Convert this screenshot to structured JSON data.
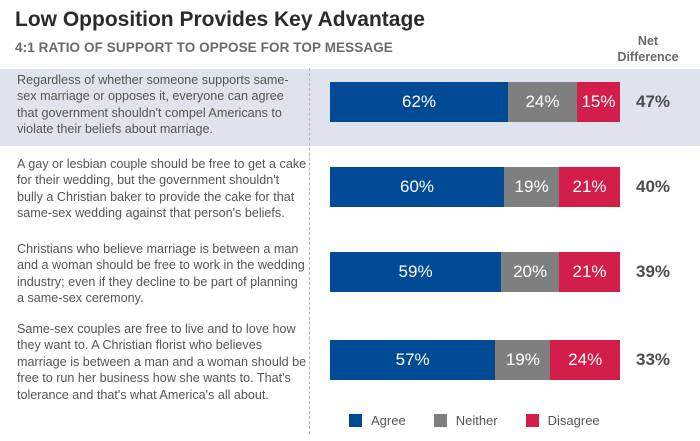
{
  "title": "Low Opposition Provides Key Advantage",
  "subtitle": "4:1 RATIO OF SUPPORT TO OPPOSE FOR TOP MESSAGE",
  "net_header": "Net Difference",
  "legend": {
    "agree": "Agree",
    "neither": "Neither",
    "disagree": "Disagree"
  },
  "colors": {
    "agree": "#004a96",
    "neither": "#7f7f7f",
    "disagree": "#d31d4b",
    "highlight": "#dee3ee"
  },
  "chart_data": {
    "type": "bar",
    "orientation": "horizontal",
    "stacked": true,
    "highlighted_row": 0,
    "categories": [
      "Regardless of whether someone supports same-sex marriage or opposes it, everyone can agree that government shouldn't compel Americans to violate their beliefs about marriage.",
      "A gay or lesbian couple should be free to get a cake for their wedding, but the government shouldn't bully a Christian baker to provide the cake for that same-sex wedding against that person's beliefs.",
      "Christians who believe marriage is between a man and a woman should be free to work in the wedding industry; even if they decline to be part of planning a same-sex ceremony.",
      "Same-sex couples are free to live and to love how they want to. A Christian florist who believes marriage is between a man and a woman should be free to run her business how she wants to. That's tolerance and that's what America's all about."
    ],
    "series": [
      {
        "name": "Agree",
        "values": [
          62,
          60,
          59,
          57
        ]
      },
      {
        "name": "Neither",
        "values": [
          24,
          19,
          20,
          19
        ]
      },
      {
        "name": "Disagree",
        "values": [
          15,
          21,
          21,
          24
        ]
      }
    ],
    "net_difference": [
      "47%",
      "40%",
      "39%",
      "33%"
    ],
    "value_labels": [
      [
        "62%",
        "24%",
        "15%"
      ],
      [
        "60%",
        "19%",
        "21%"
      ],
      [
        "59%",
        "20%",
        "21%"
      ],
      [
        "57%",
        "19%",
        "24%"
      ]
    ]
  }
}
